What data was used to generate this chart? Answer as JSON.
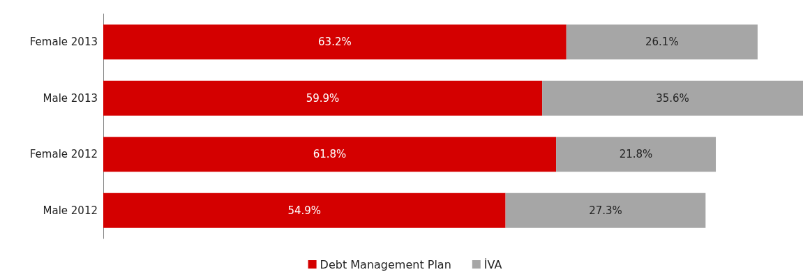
{
  "chart_data": {
    "type": "bar",
    "orientation": "horizontal",
    "stacked": true,
    "legend": "bottom",
    "tick_labels": "y",
    "categories": [
      "Female 2013",
      "Male 2013",
      "Female 2012",
      "Male 2012"
    ],
    "series": [
      {
        "name": "Debt Management Plan",
        "color": "#d40000",
        "values": [
          63.2,
          59.9,
          61.8,
          54.9
        ],
        "value_labels": [
          "63.2%",
          "59.9%",
          "61.8%",
          "54.9%"
        ]
      },
      {
        "name": "İVA",
        "color": "#a6a6a6",
        "values": [
          26.1,
          35.6,
          21.8,
          27.3
        ],
        "value_labels": [
          "26.1%",
          "35.6%",
          "21.8%",
          "27.3%"
        ]
      }
    ]
  }
}
